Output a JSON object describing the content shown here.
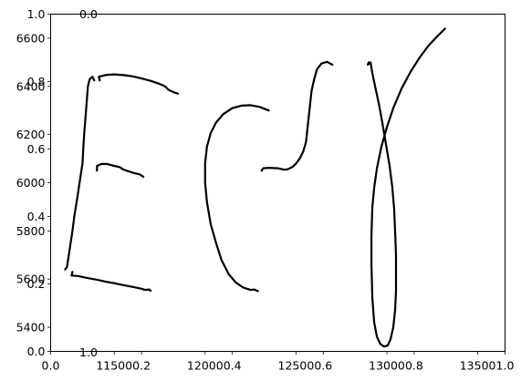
{
  "chart_data": {
    "type": "line",
    "title": "",
    "xlabel": "",
    "ylabel": "",
    "grid": false,
    "legend": "none",
    "line_color": "#000000",
    "primary_axes": {
      "ylim": [
        5300,
        6700
      ],
      "yticks": [
        "5400",
        "5600",
        "5800",
        "6000",
        "6200",
        "6400",
        "6600"
      ],
      "xlim": [
        11150,
        13650
      ],
      "xticks": [
        "11500",
        "12000",
        "12500",
        "13000",
        "13500"
      ]
    },
    "overlay_axes": {
      "xlim": [
        0.0,
        1.0
      ],
      "ylim": [
        0.0,
        1.0
      ],
      "xticks": [
        "0.0",
        "0.2",
        "0.4",
        "0.6",
        "0.8",
        "1.0"
      ],
      "yticks": [
        "0.0",
        "0.2",
        "0.4",
        "0.6",
        "0.8",
        "1.0"
      ]
    },
    "stray_tick_labels": {
      "top_left": "0.0",
      "bottom_left": "1.0"
    },
    "series": [
      {
        "glyph": "E",
        "strokes": [
          [
            [
              11230,
              5640
            ],
            [
              11240,
              5650
            ],
            [
              11250,
              5700
            ],
            [
              11260,
              5750
            ],
            [
              11270,
              5800
            ],
            [
              11280,
              5860
            ],
            [
              11295,
              5930
            ],
            [
              11305,
              5980
            ],
            [
              11315,
              6030
            ],
            [
              11325,
              6080
            ],
            [
              11330,
              6150
            ],
            [
              11335,
              6210
            ],
            [
              11340,
              6250
            ],
            [
              11345,
              6300
            ],
            [
              11350,
              6350
            ],
            [
              11355,
              6400
            ],
            [
              11365,
              6430
            ],
            [
              11380,
              6440
            ],
            [
              11390,
              6425
            ]
          ],
          [
            [
              11420,
              6425
            ],
            [
              11415,
              6440
            ],
            [
              11450,
              6447
            ],
            [
              11500,
              6450
            ],
            [
              11550,
              6447
            ],
            [
              11600,
              6442
            ],
            [
              11650,
              6433
            ],
            [
              11700,
              6423
            ],
            [
              11750,
              6410
            ],
            [
              11780,
              6400
            ],
            [
              11800,
              6385
            ],
            [
              11830,
              6375
            ],
            [
              11850,
              6370
            ]
          ],
          [
            [
              11405,
              6050
            ],
            [
              11405,
              6070
            ],
            [
              11430,
              6078
            ],
            [
              11460,
              6078
            ],
            [
              11500,
              6070
            ],
            [
              11530,
              6065
            ],
            [
              11550,
              6055
            ],
            [
              11580,
              6047
            ],
            [
              11610,
              6040
            ],
            [
              11640,
              6035
            ],
            [
              11660,
              6025
            ]
          ],
          [
            [
              11270,
              5630
            ],
            [
              11265,
              5615
            ],
            [
              11300,
              5613
            ],
            [
              11350,
              5605
            ],
            [
              11400,
              5598
            ],
            [
              11450,
              5590
            ],
            [
              11500,
              5583
            ],
            [
              11550,
              5575
            ],
            [
              11600,
              5568
            ],
            [
              11650,
              5560
            ],
            [
              11670,
              5555
            ],
            [
              11690,
              5557
            ],
            [
              11700,
              5552
            ]
          ]
        ]
      },
      {
        "glyph": "C",
        "strokes": [
          [
            [
              12350,
              6300
            ],
            [
              12300,
              6315
            ],
            [
              12250,
              6322
            ],
            [
              12200,
              6320
            ],
            [
              12150,
              6310
            ],
            [
              12100,
              6285
            ],
            [
              12060,
              6250
            ],
            [
              12030,
              6205
            ],
            [
              12010,
              6150
            ],
            [
              12000,
              6080
            ],
            [
              12000,
              6000
            ],
            [
              12010,
              5920
            ],
            [
              12030,
              5830
            ],
            [
              12060,
              5750
            ],
            [
              12090,
              5680
            ],
            [
              12130,
              5620
            ],
            [
              12170,
              5585
            ],
            [
              12210,
              5565
            ],
            [
              12250,
              5555
            ],
            [
              12270,
              5557
            ],
            [
              12290,
              5550
            ]
          ]
        ]
      },
      {
        "glyph": "Y-upper",
        "strokes": [
          [
            [
              12310,
              6050
            ],
            [
              12320,
              6060
            ],
            [
              12350,
              6062
            ],
            [
              12400,
              6060
            ],
            [
              12430,
              6055
            ],
            [
              12450,
              6055
            ],
            [
              12480,
              6065
            ],
            [
              12500,
              6080
            ],
            [
              12520,
              6100
            ],
            [
              12540,
              6130
            ],
            [
              12555,
              6170
            ],
            [
              12565,
              6240
            ],
            [
              12575,
              6310
            ],
            [
              12585,
              6380
            ],
            [
              12600,
              6430
            ],
            [
              12615,
              6470
            ],
            [
              12640,
              6495
            ],
            [
              12670,
              6502
            ],
            [
              12700,
              6490
            ]
          ]
        ]
      },
      {
        "glyph": "Y-loop",
        "strokes": [
          [
            [
              12900,
              6500
            ],
            [
              12895,
              6490
            ],
            [
              12910,
              6500
            ],
            [
              12920,
              6455
            ],
            [
              12935,
              6400
            ],
            [
              12955,
              6330
            ],
            [
              12975,
              6250
            ],
            [
              12995,
              6160
            ],
            [
              13015,
              6070
            ],
            [
              13030,
              5980
            ],
            [
              13040,
              5890
            ],
            [
              13045,
              5800
            ],
            [
              13050,
              5700
            ],
            [
              13050,
              5620
            ],
            [
              13050,
              5550
            ],
            [
              13045,
              5470
            ],
            [
              13035,
              5400
            ],
            [
              13020,
              5350
            ],
            [
              13005,
              5325
            ],
            [
              12985,
              5320
            ],
            [
              12965,
              5330
            ],
            [
              12945,
              5360
            ],
            [
              12930,
              5420
            ],
            [
              12920,
              5520
            ],
            [
              12915,
              5660
            ],
            [
              12915,
              5780
            ],
            [
              12920,
              5900
            ],
            [
              12930,
              5980
            ],
            [
              12945,
              6060
            ],
            [
              12970,
              6150
            ],
            [
              13000,
              6230
            ],
            [
              13035,
              6310
            ],
            [
              13080,
              6390
            ],
            [
              13130,
              6460
            ],
            [
              13180,
              6520
            ],
            [
              13230,
              6570
            ],
            [
              13280,
              6610
            ],
            [
              13320,
              6640
            ]
          ]
        ]
      }
    ]
  }
}
